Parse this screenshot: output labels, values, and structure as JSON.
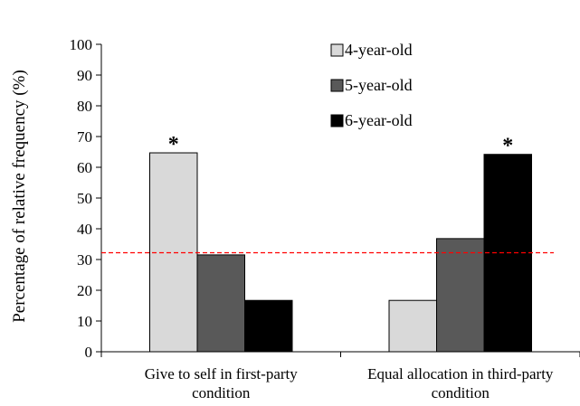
{
  "chart_data": {
    "type": "bar",
    "title": "",
    "xlabel": "",
    "ylabel": "Percentage  of  relative  frequency  (%)",
    "ylim": [
      0,
      100
    ],
    "yticks": [
      0,
      10,
      20,
      30,
      40,
      50,
      60,
      70,
      80,
      90,
      100
    ],
    "categories": [
      [
        "Give to self in first-party",
        "condition"
      ],
      [
        "Equal allocation in third-party",
        "condition"
      ]
    ],
    "series": [
      {
        "name": "4-year-old",
        "color": "#d9d9d9",
        "values": [
          64.7,
          16.7
        ]
      },
      {
        "name": "5-year-old",
        "color": "#595959",
        "values": [
          31.5,
          36.8
        ]
      },
      {
        "name": "6-year-old",
        "color": "#000000",
        "values": [
          16.7,
          64.2
        ]
      }
    ],
    "reference_line": {
      "value": 32.2,
      "color": "#ff0000",
      "style": "dashed"
    },
    "annotations": [
      {
        "text": "*",
        "category": 0,
        "series": 0
      },
      {
        "text": "*",
        "category": 1,
        "series": 2
      }
    ],
    "legend": {
      "position": "top-center"
    },
    "grid": false
  }
}
